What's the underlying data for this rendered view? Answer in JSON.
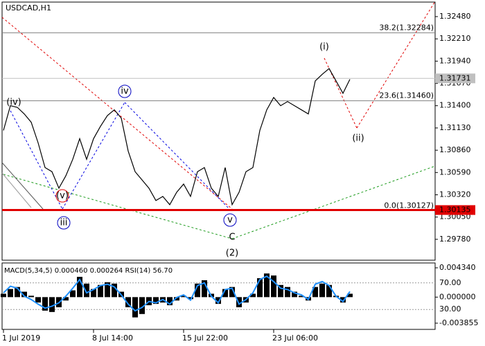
{
  "chart_data": [
    {
      "type": "line",
      "title": "USDCAD,H1",
      "categories": [
        "1 Jul 2019",
        null,
        null,
        null,
        null,
        null,
        null,
        null,
        null,
        null,
        null,
        null,
        null,
        "8 Jul 14:00",
        null,
        null,
        null,
        null,
        null,
        null,
        null,
        null,
        null,
        null,
        null,
        null,
        "15 Jul 22:00",
        null,
        null,
        null,
        null,
        null,
        null,
        null,
        null,
        null,
        null,
        null,
        null,
        "23 Jul 06:00",
        null,
        null,
        null,
        null,
        null,
        null,
        null,
        null,
        null,
        null,
        null
      ],
      "series": [
        {
          "color": "#000000",
          "values": [
            1.311,
            1.314,
            1.3138,
            1.313,
            1.312,
            1.3095,
            1.3065,
            1.306,
            1.304,
            1.3055,
            1.3075,
            1.31,
            1.3075,
            1.31,
            1.3115,
            1.3128,
            1.3135,
            1.3125,
            1.3085,
            1.306,
            1.305,
            1.304,
            1.3025,
            1.303,
            1.302,
            1.3035,
            1.3045,
            1.303,
            1.306,
            1.3065,
            1.304,
            1.303,
            1.3065,
            1.302,
            1.3035,
            1.306,
            1.3065,
            1.311,
            1.3135,
            1.315,
            1.314,
            1.3145,
            1.314,
            1.3135,
            1.313,
            1.317,
            1.3178,
            1.3185,
            1.317,
            1.3155,
            1.3172
          ]
        }
      ],
      "ylim": [
        1.29527,
        1.32656
      ],
      "yticks": [
        {
          "value": 1.3248,
          "label": "1.32480"
        },
        {
          "value": 1.3221,
          "label": "1.32210"
        },
        {
          "value": 1.3194,
          "label": "1.31940"
        },
        {
          "value": 1.3167,
          "label": "1.31670"
        },
        {
          "value": 1.314,
          "label": "1.31400"
        },
        {
          "value": 1.3113,
          "label": "1.31130"
        },
        {
          "value": 1.3086,
          "label": "1.30860"
        },
        {
          "value": 1.3059,
          "label": "1.30590"
        },
        {
          "value": 1.3032,
          "label": "1.30320"
        },
        {
          "value": 1.3005,
          "label": "1.30050"
        },
        {
          "value": 1.2978,
          "label": "1.29780"
        }
      ],
      "price_lines": [
        {
          "value": 1.31731,
          "color": "#c0c0c0"
        },
        {
          "value": 1.30135,
          "color": "#e00000"
        }
      ],
      "levels": [
        {
          "value": 1.32284,
          "label": "38.2(1.32284)"
        },
        {
          "value": 1.3146,
          "label": "23.6(1.31460)"
        },
        {
          "value": 1.30127,
          "label": "0.0(1.30127)"
        }
      ],
      "annotations": [
        {
          "text": "(iv)",
          "color": "#e00000"
        },
        {
          "text": "(v)",
          "color": "#e00000"
        },
        {
          "text": "iii",
          "color": "#0000c0"
        },
        {
          "text": "iv",
          "color": "#0000c0"
        },
        {
          "text": "v",
          "color": "#0000c0"
        },
        {
          "text": "C",
          "color": "#e00000"
        },
        {
          "text": "(2)",
          "color": "#1a9a1a"
        },
        {
          "text": "(i)",
          "color": "#e00000"
        },
        {
          "text": "(ii)",
          "color": "#e00000"
        }
      ]
    },
    {
      "type": "bar",
      "title": "MACD(5,34,5) 0.000460 0.000264 RSI(14) 56.70",
      "series": [
        {
          "color": "#000000",
          "values": [
            0.0005,
            0.0012,
            0.0015,
            0.0008,
            0.0002,
            -0.0008,
            -0.002,
            -0.0022,
            -0.0015,
            -0.0005,
            0.001,
            0.003,
            0.002,
            0.0012,
            0.0018,
            0.0022,
            0.002,
            0.0008,
            -0.0015,
            -0.003,
            -0.0025,
            -0.0012,
            -0.001,
            -0.0008,
            -0.0012,
            -0.0005,
            0.0002,
            -0.0003,
            0.002,
            0.0025,
            0.0005,
            -0.001,
            0.0012,
            0.0015,
            -0.0015,
            -0.0008,
            0.0005,
            0.0028,
            0.0035,
            0.0032,
            0.0018,
            0.0015,
            0.0008,
            0.0002,
            -0.0005,
            0.0015,
            0.002,
            0.0018,
            0.0002,
            -0.0008,
            0.0005
          ]
        },
        {
          "color": "#1e90ff",
          "axis": "y2",
          "values": [
            55,
            65,
            62,
            50,
            45,
            38,
            32,
            35,
            40,
            50,
            62,
            75,
            55,
            60,
            66,
            68,
            64,
            52,
            38,
            28,
            33,
            42,
            40,
            45,
            38,
            48,
            52,
            44,
            66,
            70,
            50,
            40,
            60,
            62,
            38,
            45,
            55,
            75,
            80,
            72,
            62,
            60,
            55,
            52,
            45,
            68,
            72,
            66,
            50,
            42,
            57
          ]
        }
      ],
      "ylim": [
        -0.004777,
        0.005057
      ],
      "yticks": [
        {
          "value": 0.00434,
          "label": "0.004340"
        },
        {
          "value": 0,
          "label": "0.000000"
        },
        {
          "value": -0.003855,
          "label": "-0.003855"
        }
      ],
      "y2lim": [
        0,
        100
      ],
      "y2ticks": [
        {
          "value": 70,
          "label": "70.00"
        },
        {
          "value": 30,
          "label": "30.00"
        }
      ]
    }
  ]
}
